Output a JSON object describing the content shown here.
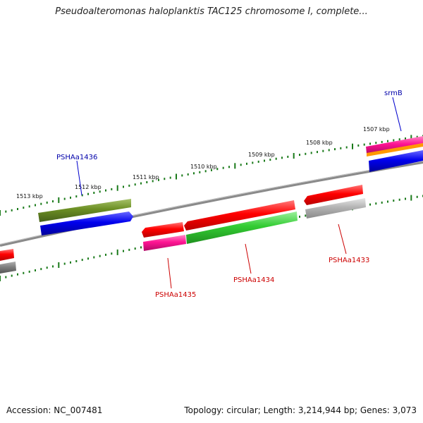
{
  "title": "Pseudoalteromonas haloplanktis TAC125 chromosome I, complete...",
  "footer": {
    "accession": "Accession: NC_007481",
    "topology": "Topology: circular; Length: 3,214,944 bp; Genes: 3,073"
  },
  "ruler": {
    "labels": [
      "1513 kbp",
      "1512 kbp",
      "1511 kbp",
      "1510 kbp",
      "1509 kbp",
      "1508 kbp",
      "1507 kbp"
    ]
  },
  "genes": [
    {
      "label": "PSHAa1436",
      "label_color": "#0000aa"
    },
    {
      "label": "PSHAa1435",
      "label_color": "#cc0000"
    },
    {
      "label": "PSHAa1434",
      "label_color": "#cc0000"
    },
    {
      "label": "PSHAa1433",
      "label_color": "#cc0000"
    },
    {
      "label": "srmB",
      "label_color": "#0000aa"
    }
  ],
  "colors": {
    "backbone": "#8a8a8a",
    "ticks": "#1a7a1a",
    "red": "#ff0000",
    "green": "#33cc33",
    "olive": "#6b8e23",
    "blue": "#0000ee",
    "pink": "#ff1493",
    "gray": "#b3b3b3",
    "darkgray": "#808080"
  }
}
